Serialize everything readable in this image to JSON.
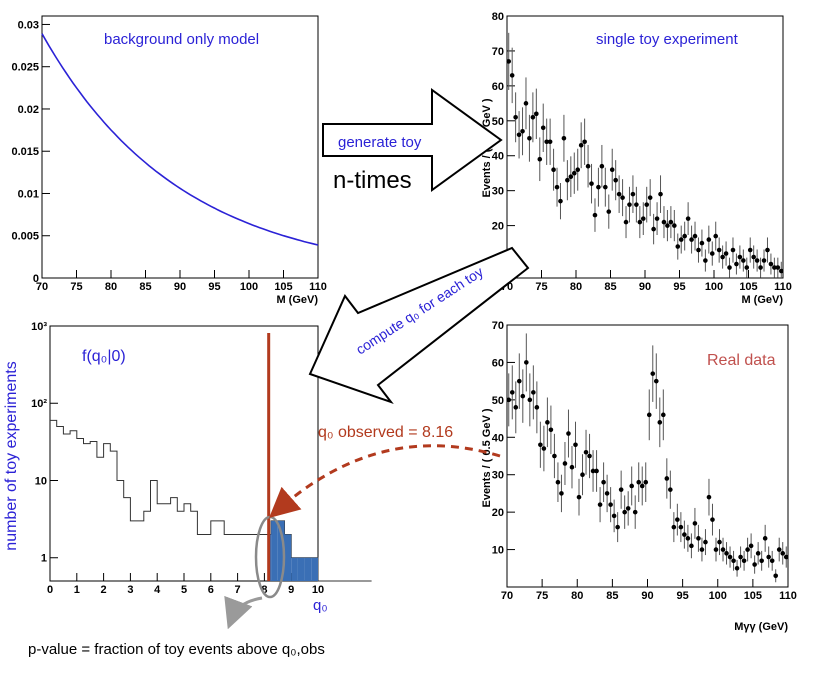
{
  "panels": {
    "bg_model": {
      "label": "background only model",
      "xlabel": "M (GeV)",
      "xticks": [
        "70",
        "75",
        "80",
        "85",
        "90",
        "95",
        "100",
        "105",
        "110"
      ],
      "yticks": [
        "0",
        "0.005",
        "0.01",
        "0.015",
        "0.02",
        "0.025",
        "0.03"
      ]
    },
    "toy": {
      "label": "single toy experiment",
      "xlabel": "M (GeV)",
      "ylabel": "Events / ( 0.5 GeV )",
      "xticks": [
        "70",
        "75",
        "80",
        "85",
        "90",
        "95",
        "100",
        "105",
        "110"
      ],
      "yticks": [
        "10",
        "20",
        "30",
        "40",
        "50",
        "60",
        "70",
        "80"
      ]
    },
    "q0dist": {
      "label": "f(q₀|0)",
      "xlabel": "q₀",
      "ylabel": "number of toy experiments",
      "xticks": [
        "0",
        "1",
        "2",
        "3",
        "4",
        "5",
        "6",
        "7",
        "8",
        "9",
        "10"
      ],
      "yticks": [
        "1",
        "10",
        "10²",
        "10³"
      ]
    },
    "realdata": {
      "label": "Real data",
      "xlabel": "Mγγ (GeV)",
      "ylabel": "Events / ( 0.5 GeV )",
      "xticks": [
        "70",
        "75",
        "80",
        "85",
        "90",
        "95",
        "100",
        "105",
        "110"
      ],
      "yticks": [
        "10",
        "20",
        "30",
        "40",
        "50",
        "60",
        "70"
      ]
    }
  },
  "arrows": {
    "generate_label": "generate toy",
    "ntimes_label": "n-times",
    "compute_label": "compute q₀ for each toy"
  },
  "annotations": {
    "observed": "q₀ observed = 8.16",
    "pvalue": "p-value = fraction of toy events above q₀,obs"
  },
  "colors": {
    "curve": "#2b22d6",
    "label_blue": "#2b22d6",
    "observed_red": "#b23a1e",
    "real_data_red": "#c0504d",
    "hist_fill": "#3a6fb5"
  },
  "chart_data": [
    {
      "type": "line",
      "name": "background only model",
      "x": [
        70,
        75,
        80,
        85,
        90,
        95,
        100,
        105,
        110
      ],
      "y": [
        0.0289,
        0.0229,
        0.0181,
        0.0144,
        0.0114,
        0.009,
        0.0071,
        0.0056,
        0.0039
      ],
      "xlabel": "M (GeV)",
      "xlim": [
        70,
        110
      ],
      "ylim": [
        0,
        0.031
      ]
    },
    {
      "type": "scatter",
      "name": "single toy experiment",
      "x": [
        70.25,
        70.75,
        71.25,
        71.75,
        72.25,
        72.75,
        73.25,
        73.75,
        74.25,
        74.75,
        75.25,
        75.75,
        76.25,
        76.75,
        77.25,
        77.75,
        78.25,
        78.75,
        79.25,
        79.75,
        80.25,
        80.75,
        81.25,
        81.75,
        82.25,
        82.75,
        83.25,
        83.75,
        84.25,
        84.75,
        85.25,
        85.75,
        86.25,
        86.75,
        87.25,
        87.75,
        88.25,
        88.75,
        89.25,
        89.75,
        90.25,
        90.75,
        91.25,
        91.75,
        92.25,
        92.75,
        93.25,
        93.75,
        94.25,
        94.75,
        95.25,
        95.75,
        96.25,
        96.75,
        97.25,
        97.75,
        98.25,
        98.75,
        99.25,
        99.75,
        100.25,
        100.75,
        101.25,
        101.75,
        102.25,
        102.75,
        103.25,
        103.75,
        104.25,
        104.75,
        105.25,
        105.75,
        106.25,
        106.75,
        107.25,
        107.75,
        108.25,
        108.75,
        109.25,
        109.75
      ],
      "y": [
        67,
        63,
        51,
        46,
        47,
        55,
        45,
        51,
        52,
        39,
        48,
        44,
        44,
        36,
        31,
        27,
        45,
        33,
        34,
        35,
        36,
        43,
        44,
        37,
        32,
        23,
        31,
        37,
        31,
        24,
        36,
        33,
        29,
        28,
        21,
        26,
        29,
        26,
        21,
        22,
        26,
        28,
        19,
        22,
        29,
        21,
        20,
        21,
        20,
        14,
        16,
        17,
        22,
        16,
        17,
        13,
        15,
        10,
        16,
        12,
        17,
        13,
        11,
        12,
        8,
        13,
        9,
        11,
        10,
        8,
        13,
        11,
        10,
        8,
        10,
        13,
        9,
        8,
        8,
        7
      ],
      "xlabel": "M (GeV)",
      "ylabel": "Events / ( 0.5 GeV )",
      "xlim": [
        70,
        110
      ],
      "ylim": [
        5,
        80
      ]
    },
    {
      "type": "bar",
      "name": "f(q0|0)",
      "bin_width": 0.25,
      "x_start": 0,
      "values": [
        60,
        50,
        40,
        44,
        35,
        30,
        32,
        20,
        30,
        24,
        10,
        6,
        3,
        3,
        4,
        10,
        5,
        5,
        6,
        4,
        5,
        4,
        2,
        2,
        3,
        3,
        2,
        2,
        2,
        2,
        2,
        2,
        2,
        3,
        3,
        2,
        1,
        1,
        1,
        1,
        0,
        0,
        0,
        0,
        0,
        0,
        0,
        0
      ],
      "xlabel": "q₀",
      "ylabel": "number of toy experiments",
      "xlim": [
        0,
        10
      ],
      "ylim": [
        0.5,
        1000
      ],
      "y_scale": "log",
      "observed_q0": 8.16
    },
    {
      "type": "scatter",
      "name": "Real data",
      "x": [
        70.25,
        70.75,
        71.25,
        71.75,
        72.25,
        72.75,
        73.25,
        73.75,
        74.25,
        74.75,
        75.25,
        75.75,
        76.25,
        76.75,
        77.25,
        77.75,
        78.25,
        78.75,
        79.25,
        79.75,
        80.25,
        80.75,
        81.25,
        81.75,
        82.25,
        82.75,
        83.25,
        83.75,
        84.25,
        84.75,
        85.25,
        85.75,
        86.25,
        86.75,
        87.25,
        87.75,
        88.25,
        88.75,
        89.25,
        89.75,
        90.25,
        90.75,
        91.25,
        91.75,
        92.25,
        92.75,
        93.25,
        93.75,
        94.25,
        94.75,
        95.25,
        95.75,
        96.25,
        96.75,
        97.25,
        97.75,
        98.25,
        98.75,
        99.25,
        99.75,
        100.25,
        100.75,
        101.25,
        101.75,
        102.25,
        102.75,
        103.25,
        103.75,
        104.25,
        104.75,
        105.25,
        105.75,
        106.25,
        106.75,
        107.25,
        107.75,
        108.25,
        108.75,
        109.25,
        109.75
      ],
      "y": [
        50,
        52,
        48,
        55,
        51,
        60,
        50,
        52,
        48,
        38,
        37,
        44,
        42,
        35,
        28,
        25,
        33,
        41,
        32,
        38,
        24,
        30,
        36,
        35,
        31,
        31,
        22,
        28,
        25,
        22,
        19,
        16,
        26,
        20,
        21,
        27,
        20,
        28,
        27,
        28,
        46,
        57,
        55,
        44,
        46,
        29,
        26,
        16,
        18,
        16,
        14,
        13,
        11,
        17,
        13,
        10,
        12,
        24,
        18,
        10,
        12,
        10,
        9,
        8,
        7,
        5,
        8,
        7,
        10,
        11,
        6,
        9,
        7,
        13,
        8,
        7,
        3,
        10,
        9,
        8
      ],
      "xlabel": "Mγγ (GeV)",
      "ylabel": "Events / ( 0.5 GeV )",
      "xlim": [
        70,
        110
      ],
      "ylim": [
        0,
        70
      ]
    }
  ]
}
